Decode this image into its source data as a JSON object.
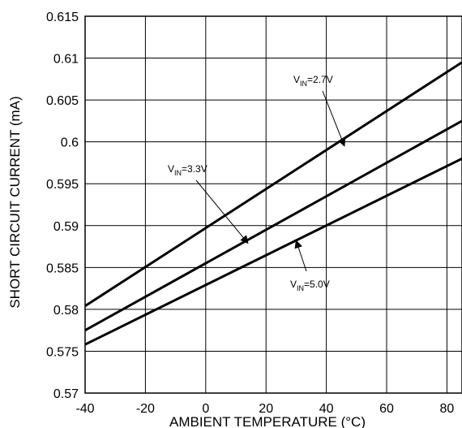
{
  "chart_data": {
    "type": "line",
    "xlabel": "AMBIENT TEMPERATURE (°C)",
    "ylabel": "SHORT CIRCUIT CURRENT (mA)",
    "xlim": [
      -40,
      85
    ],
    "ylim": [
      0.57,
      0.615
    ],
    "x_ticks": [
      "-40",
      "-20",
      "0",
      "20",
      "40",
      "60",
      "80"
    ],
    "y_ticks": [
      "0.57",
      "0.575",
      "0.58",
      "0.585",
      "0.59",
      "0.595",
      "0.6",
      "0.605",
      "0.61",
      "0.615"
    ],
    "grid": true,
    "colors": {
      "lines": "#000000",
      "grid": "#000000",
      "background": "#ffffff"
    },
    "series": [
      {
        "label_main": "V",
        "label_sub": "IN",
        "label_rest": "=2.7V",
        "x": [
          -40,
          85
        ],
        "y": [
          0.5804,
          0.6095
        ],
        "pointer": [
          46,
          0.5995
        ]
      },
      {
        "label_main": "V",
        "label_sub": "IN",
        "label_rest": "=3.3V",
        "x": [
          -40,
          85
        ],
        "y": [
          0.5775,
          0.6025
        ],
        "pointer": [
          14,
          0.5879
        ]
      },
      {
        "label_main": "V",
        "label_sub": "IN",
        "label_rest": "=5.0V",
        "x": [
          -40,
          85
        ],
        "y": [
          0.5758,
          0.598
        ],
        "pointer": [
          30,
          0.5882
        ]
      }
    ]
  }
}
